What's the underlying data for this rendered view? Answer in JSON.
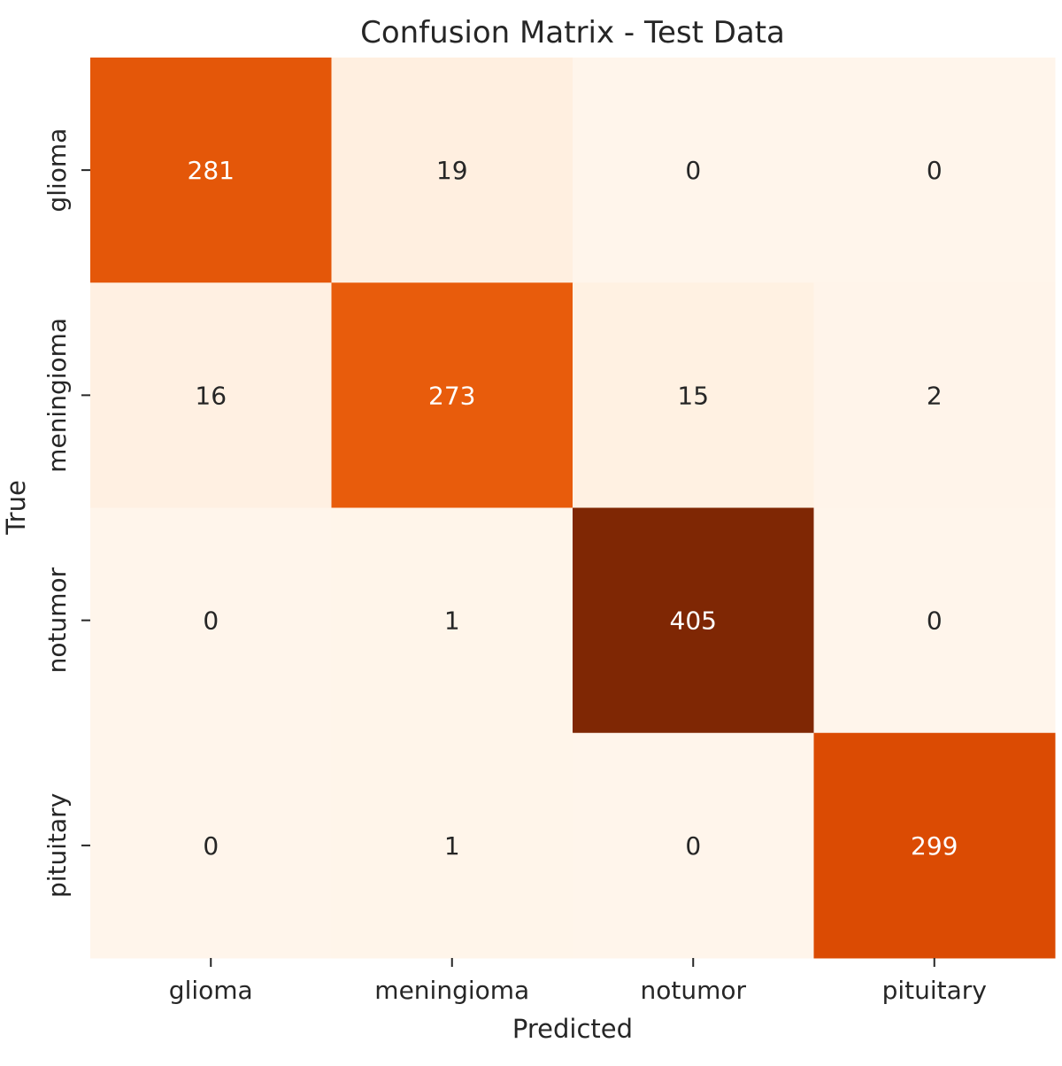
{
  "chart_data": {
    "type": "heatmap",
    "title": "Confusion Matrix - Test Data",
    "xlabel": "Predicted",
    "ylabel": "True",
    "x_categories": [
      "glioma",
      "meningioma",
      "notumor",
      "pituitary"
    ],
    "y_categories": [
      "glioma",
      "meningioma",
      "notumor",
      "pituitary"
    ],
    "values": [
      [
        281,
        19,
        0,
        0
      ],
      [
        16,
        273,
        15,
        2
      ],
      [
        0,
        1,
        405,
        0
      ],
      [
        0,
        1,
        0,
        299
      ]
    ],
    "colormap": "Oranges",
    "color_range": [
      0,
      405
    ],
    "colorbar": false,
    "grid": false
  }
}
